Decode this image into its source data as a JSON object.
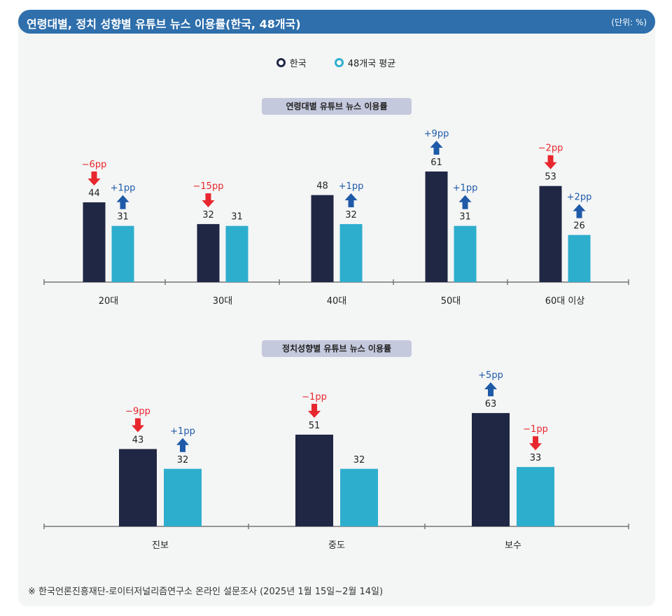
{
  "header": {
    "title": "연령대별, 정치 성향별 유튜브 뉴스 이용률(한국, 48개국)",
    "unit": "(단위: %)"
  },
  "legend": [
    {
      "label": "한국",
      "color": "#1f2744"
    },
    {
      "label": "48개국 평균",
      "color": "#2eaecd"
    }
  ],
  "colors": {
    "korea": "#1f2744",
    "average": "#2eaecd",
    "negative": "#e8262d",
    "positive": "#1e5aa8"
  },
  "source": "※ 한국언론진흥재단-로이터저널리즘연구소 온라인 설문조사 (2025년 1월 15일~2월 14일)",
  "chart_data": [
    {
      "type": "bar",
      "title": "연령대별 유튜브 뉴스 이용률",
      "categories": [
        "20대",
        "30대",
        "40대",
        "50대",
        "60대 이상"
      ],
      "series": [
        {
          "name": "한국",
          "values": [
            44,
            32,
            48,
            61,
            53
          ],
          "changes": [
            "−6pp",
            "−15pp",
            null,
            "+9pp",
            "−2pp"
          ]
        },
        {
          "name": "48개국 평균",
          "values": [
            31,
            31,
            32,
            31,
            26
          ],
          "changes": [
            "+1pp",
            null,
            "+1pp",
            "+1pp",
            "+2pp"
          ]
        }
      ]
    },
    {
      "type": "bar",
      "title": "정치성향별 유튜브 뉴스 이용률",
      "categories": [
        "진보",
        "중도",
        "보수"
      ],
      "series": [
        {
          "name": "한국",
          "values": [
            43,
            51,
            63
          ],
          "changes": [
            "−9pp",
            "−1pp",
            "+5pp"
          ]
        },
        {
          "name": "48개국 평균",
          "values": [
            32,
            32,
            33
          ],
          "changes": [
            "+1pp",
            null,
            "−1pp"
          ]
        }
      ]
    }
  ]
}
